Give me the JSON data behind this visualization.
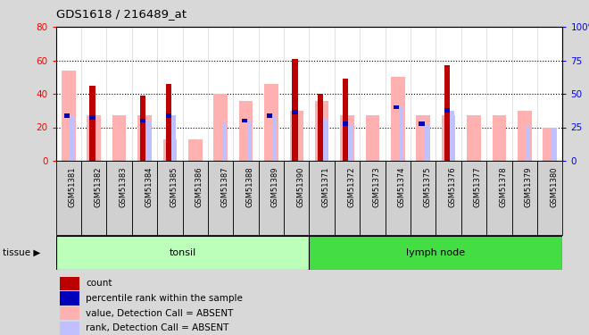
{
  "title": "GDS1618 / 216489_at",
  "samples": [
    "GSM51381",
    "GSM51382",
    "GSM51383",
    "GSM51384",
    "GSM51385",
    "GSM51386",
    "GSM51387",
    "GSM51388",
    "GSM51389",
    "GSM51390",
    "GSM51371",
    "GSM51372",
    "GSM51373",
    "GSM51374",
    "GSM51375",
    "GSM51376",
    "GSM51377",
    "GSM51378",
    "GSM51379",
    "GSM51380"
  ],
  "tissue_groups": [
    {
      "label": "tonsil",
      "start": 0,
      "end": 10,
      "color": "#bbffbb"
    },
    {
      "label": "lymph node",
      "start": 10,
      "end": 20,
      "color": "#44dd44"
    }
  ],
  "pink_bar": [
    54,
    27,
    27,
    27,
    13,
    13,
    40,
    36,
    46,
    30,
    36,
    27,
    27,
    50,
    27,
    27,
    27,
    27,
    30,
    20
  ],
  "red_bar": [
    0,
    45,
    0,
    39,
    46,
    0,
    0,
    0,
    0,
    61,
    40,
    49,
    0,
    0,
    0,
    57,
    0,
    0,
    0,
    0
  ],
  "blue_square": [
    27,
    26,
    0,
    24,
    27,
    0,
    0,
    24,
    27,
    29,
    0,
    22,
    0,
    32,
    22,
    30,
    0,
    0,
    0,
    0
  ],
  "light_blue_bar": [
    27,
    0,
    0,
    24,
    27,
    0,
    23,
    24,
    27,
    0,
    25,
    22,
    0,
    32,
    22,
    30,
    0,
    0,
    21,
    20
  ],
  "ylim_left": [
    0,
    80
  ],
  "ylim_right": [
    0,
    100
  ],
  "yticks_left": [
    0,
    20,
    40,
    60,
    80
  ],
  "yticks_right": [
    0,
    25,
    50,
    75,
    100
  ],
  "bg_color": "#d8d8d8",
  "plot_bg": "#ffffff",
  "pink_color": "#ffb0b0",
  "red_color": "#bb0000",
  "blue_color": "#0000bb",
  "light_blue_color": "#c0c0ff",
  "legend": [
    {
      "color": "#bb0000",
      "label": "count"
    },
    {
      "color": "#0000bb",
      "label": "percentile rank within the sample"
    },
    {
      "color": "#ffb0b0",
      "label": "value, Detection Call = ABSENT"
    },
    {
      "color": "#c0c0ff",
      "label": "rank, Detection Call = ABSENT"
    }
  ]
}
